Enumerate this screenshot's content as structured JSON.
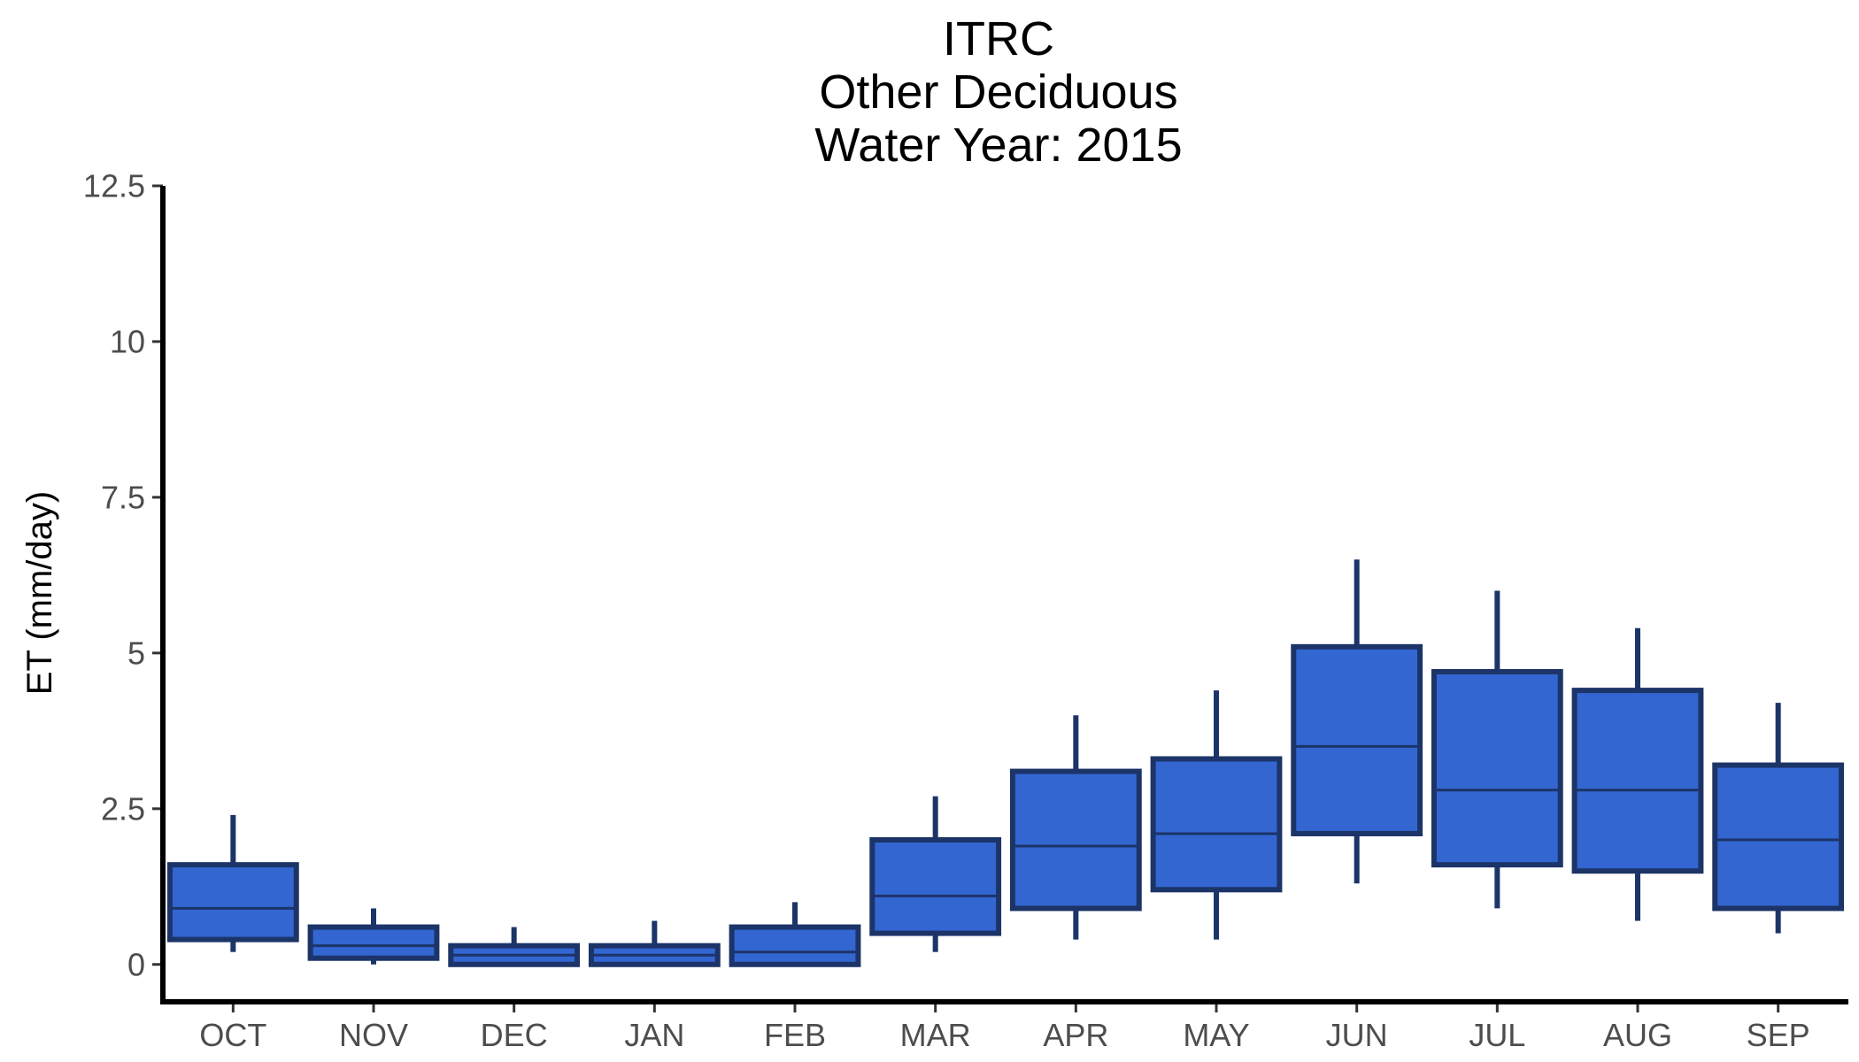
{
  "chart_data": {
    "type": "boxplot",
    "title_lines": [
      "ITRC",
      "Other Deciduous",
      "Water Year: 2015"
    ],
    "xlabel": "",
    "ylabel": "ET (mm/day)",
    "ylim": [
      -0.6,
      12.5
    ],
    "yticks": [
      0,
      2.5,
      5,
      7.5,
      10,
      12.5
    ],
    "ytick_labels": [
      "0",
      "2.5",
      "5",
      "7.5",
      "10",
      "12.5"
    ],
    "categories": [
      "OCT",
      "NOV",
      "DEC",
      "JAN",
      "FEB",
      "MAR",
      "APR",
      "MAY",
      "JUN",
      "JUL",
      "AUG",
      "SEP"
    ],
    "boxes": [
      {
        "min": 0.2,
        "q1": 0.4,
        "median": 0.9,
        "q3": 1.6,
        "max": 2.4
      },
      {
        "min": 0.0,
        "q1": 0.1,
        "median": 0.3,
        "q3": 0.6,
        "max": 0.9
      },
      {
        "min": 0.0,
        "q1": 0.0,
        "median": 0.15,
        "q3": 0.3,
        "max": 0.6
      },
      {
        "min": 0.0,
        "q1": 0.0,
        "median": 0.15,
        "q3": 0.3,
        "max": 0.7
      },
      {
        "min": 0.0,
        "q1": 0.0,
        "median": 0.2,
        "q3": 0.6,
        "max": 1.0
      },
      {
        "min": 0.2,
        "q1": 0.5,
        "median": 1.1,
        "q3": 2.0,
        "max": 2.7
      },
      {
        "min": 0.4,
        "q1": 0.9,
        "median": 1.9,
        "q3": 3.1,
        "max": 4.0
      },
      {
        "min": 0.4,
        "q1": 1.2,
        "median": 2.1,
        "q3": 3.3,
        "max": 4.4
      },
      {
        "min": 1.3,
        "q1": 2.1,
        "median": 3.5,
        "q3": 5.1,
        "max": 6.5
      },
      {
        "min": 0.9,
        "q1": 1.6,
        "median": 2.8,
        "q3": 4.7,
        "max": 6.0
      },
      {
        "min": 0.7,
        "q1": 1.5,
        "median": 2.8,
        "q3": 4.4,
        "max": 5.4
      },
      {
        "min": 0.5,
        "q1": 0.9,
        "median": 2.0,
        "q3": 3.2,
        "max": 4.2
      }
    ],
    "grid": false,
    "legend": "none",
    "colors": {
      "box_fill": "#3366d1",
      "box_stroke": "#1c3468",
      "axis": "#000000"
    }
  }
}
